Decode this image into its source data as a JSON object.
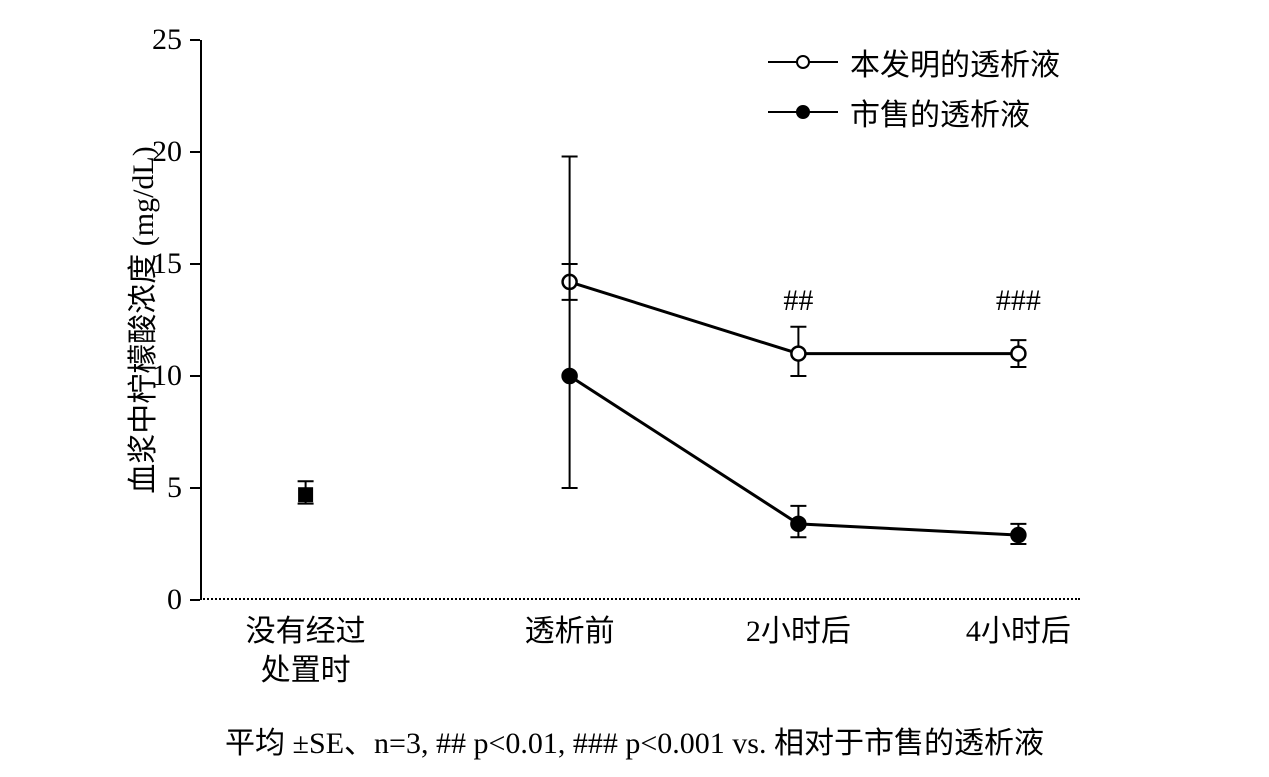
{
  "chart": {
    "type": "line-with-errorbars",
    "background_color": "#ffffff",
    "axis_color": "#000000",
    "y_axis": {
      "title": "血浆中柠檬酸浓度 (mg/dL)",
      "min": 0,
      "max": 25,
      "tick_step": 5,
      "ticks": [
        0,
        5,
        10,
        15,
        20,
        25
      ],
      "title_fontsize": 30,
      "tick_fontsize": 30
    },
    "x_axis": {
      "categories": [
        "没有经过\n处置时",
        "透析前",
        "2小时后",
        "4小时后"
      ],
      "positions": [
        0.12,
        0.42,
        0.68,
        0.93
      ],
      "tick_fontsize": 30
    },
    "baseline_point": {
      "x_index": 0,
      "value": 4.7,
      "err_low": 0.4,
      "err_high": 0.6,
      "marker": "square-filled",
      "color": "#000000"
    },
    "series": [
      {
        "name": "invention",
        "label": "本发明的透析液",
        "marker": "circle-open",
        "marker_fill": "#ffffff",
        "marker_stroke": "#000000",
        "marker_size": 14,
        "line_color": "#000000",
        "line_width": 3,
        "points": [
          {
            "x_index": 1,
            "y": 14.2,
            "err_low": 0.8,
            "err_high": 0.8
          },
          {
            "x_index": 2,
            "y": 11.0,
            "err_low": 1.0,
            "err_high": 1.2
          },
          {
            "x_index": 3,
            "y": 11.0,
            "err_low": 0.6,
            "err_high": 0.6
          }
        ]
      },
      {
        "name": "commercial",
        "label": "市售的透析液",
        "marker": "circle-filled",
        "marker_fill": "#000000",
        "marker_stroke": "#000000",
        "marker_size": 14,
        "line_color": "#000000",
        "line_width": 3,
        "points": [
          {
            "x_index": 1,
            "y": 10.0,
            "err_low": 5.0,
            "err_high": 9.8
          },
          {
            "x_index": 2,
            "y": 3.4,
            "err_low": 0.6,
            "err_high": 0.8
          },
          {
            "x_index": 3,
            "y": 2.9,
            "err_low": 0.4,
            "err_high": 0.5
          }
        ]
      }
    ],
    "significance_markers": [
      {
        "x_index": 2,
        "text": "##",
        "y_offset": 13.2
      },
      {
        "x_index": 3,
        "text": "###",
        "y_offset": 13.2
      }
    ],
    "legend": {
      "position": "top-right",
      "fontsize": 30
    },
    "caption": "平均 ±SE、n=3, ## p<0.01, ### p<0.001 vs. 相对于市售的透析液",
    "caption_fontsize": 30,
    "errorbar_cap_width": 16,
    "errorbar_line_width": 2
  }
}
